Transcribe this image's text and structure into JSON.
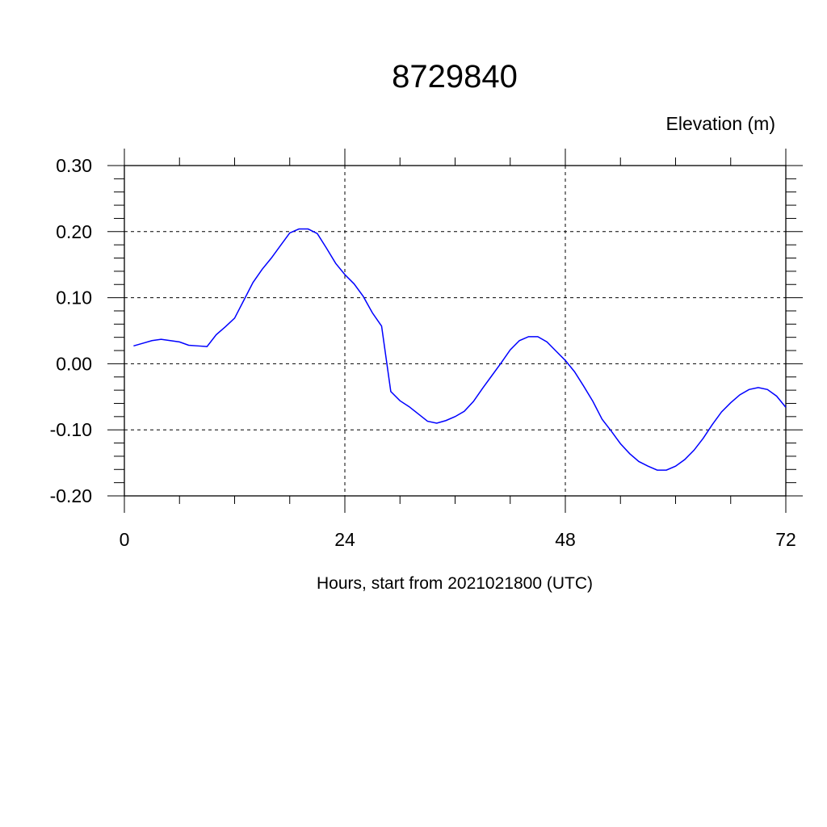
{
  "chart_data": {
    "type": "line",
    "title": "8729840",
    "ylabel": "Elevation (m)",
    "xlabel": "Hours, start from 2021021800 (UTC)",
    "xlim": [
      0,
      72
    ],
    "ylim": [
      -0.2,
      0.3
    ],
    "x_ticks": [
      0,
      24,
      48,
      72
    ],
    "x_tick_labels": [
      "0",
      "24",
      "48",
      "72"
    ],
    "y_ticks": [
      0.3,
      0.2,
      0.1,
      0.0,
      -0.1,
      -0.2
    ],
    "y_tick_labels": [
      "0.30",
      "0.20",
      "0.10",
      "0.00",
      "-0.10",
      "-0.20"
    ],
    "grid": true,
    "line_color": "#0000ff",
    "series": [
      {
        "x": [
          1,
          2,
          3,
          4,
          5,
          6,
          7,
          8,
          9,
          10,
          11,
          12,
          13,
          14,
          15,
          16,
          17,
          18,
          19,
          20,
          21,
          22,
          23,
          24,
          25,
          26,
          27,
          28,
          29,
          30,
          31,
          32,
          33,
          34,
          35,
          36,
          37,
          38,
          39,
          40,
          41,
          42,
          43,
          44,
          45,
          46,
          47,
          48,
          49,
          50,
          51,
          52,
          53,
          54,
          55,
          56,
          57,
          58,
          59,
          60,
          61,
          62,
          63,
          64,
          65,
          66,
          67,
          68,
          69,
          70,
          71,
          72
        ],
        "values": [
          0.027,
          0.031,
          0.035,
          0.037,
          0.035,
          0.033,
          0.028,
          0.027,
          0.026,
          0.044,
          0.056,
          0.069,
          0.096,
          0.123,
          0.143,
          0.16,
          0.179,
          0.198,
          0.204,
          0.204,
          0.197,
          0.175,
          0.152,
          0.135,
          0.121,
          0.102,
          0.077,
          0.057,
          -0.042,
          -0.056,
          -0.065,
          -0.076,
          -0.087,
          -0.09,
          -0.086,
          -0.08,
          -0.072,
          -0.057,
          -0.037,
          -0.018,
          0.001,
          0.021,
          0.035,
          0.041,
          0.041,
          0.033,
          0.019,
          0.005,
          -0.012,
          -0.034,
          -0.057,
          -0.084,
          -0.102,
          -0.121,
          -0.136,
          -0.148,
          -0.155,
          -0.161,
          -0.161,
          -0.155,
          -0.145,
          -0.131,
          -0.113,
          -0.092,
          -0.073,
          -0.059,
          -0.047,
          -0.039,
          -0.036,
          -0.039,
          -0.049,
          -0.066
        ]
      }
    ]
  }
}
